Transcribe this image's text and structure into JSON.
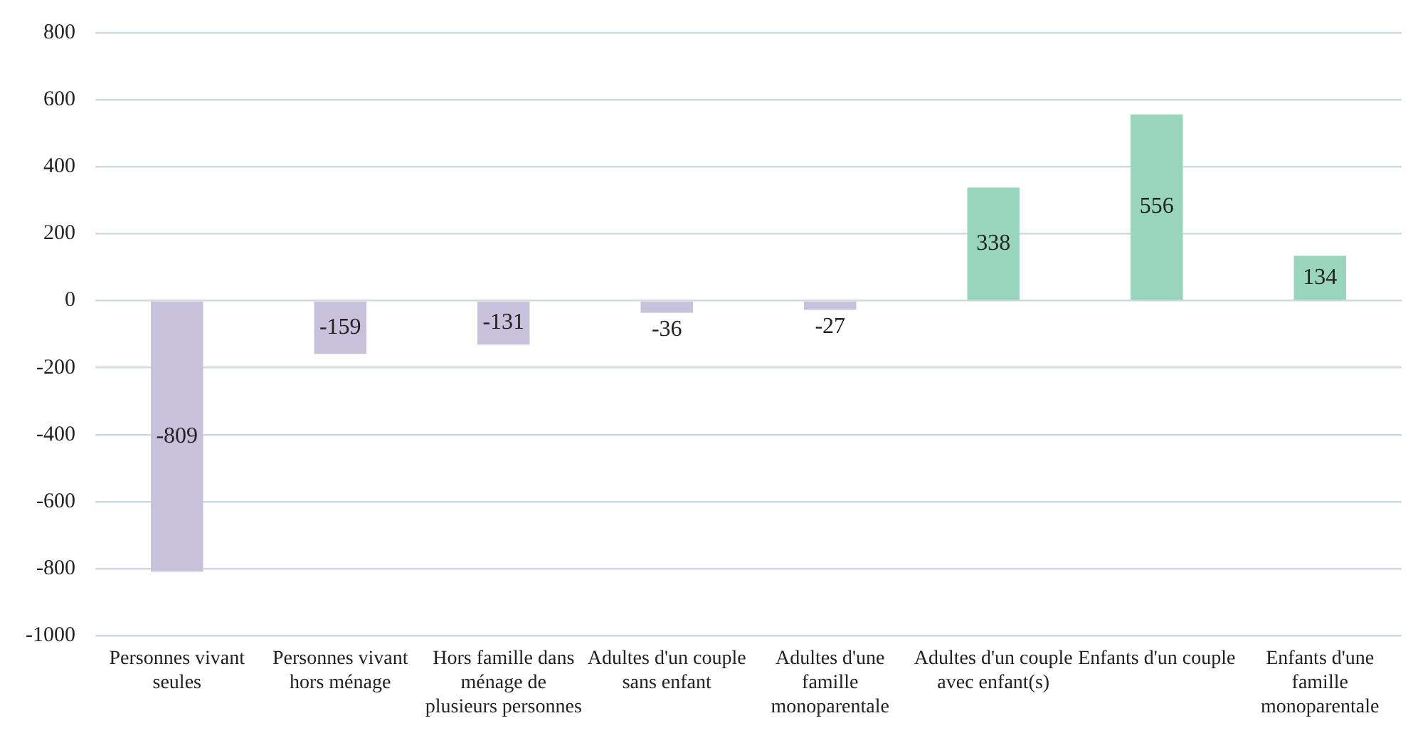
{
  "chart_data": {
    "type": "bar",
    "categories": [
      "Personnes vivant seules",
      "Personnes vivant hors ménage",
      "Hors famille dans ménage de plusieurs personnes",
      "Adultes d'un couple sans enfant",
      "Adultes d'une famille monoparentale",
      "Adultes d'un couple avec enfant(s)",
      "Enfants d'un couple",
      "Enfants d'une famille monoparentale"
    ],
    "values": [
      -809,
      -159,
      -131,
      -36,
      -27,
      338,
      556,
      134
    ],
    "colors": [
      "#c7c1dc",
      "#c7c1dc",
      "#c7c1dc",
      "#c7c1dc",
      "#c7c1dc",
      "#98d5bc",
      "#98d5bc",
      "#98d5bc"
    ],
    "ylim": [
      -1000,
      800
    ],
    "yticks": [
      -1000,
      -800,
      -600,
      -400,
      -200,
      0,
      200,
      400,
      600,
      800
    ],
    "grid": "y",
    "legend": false,
    "data_labels": true
  }
}
